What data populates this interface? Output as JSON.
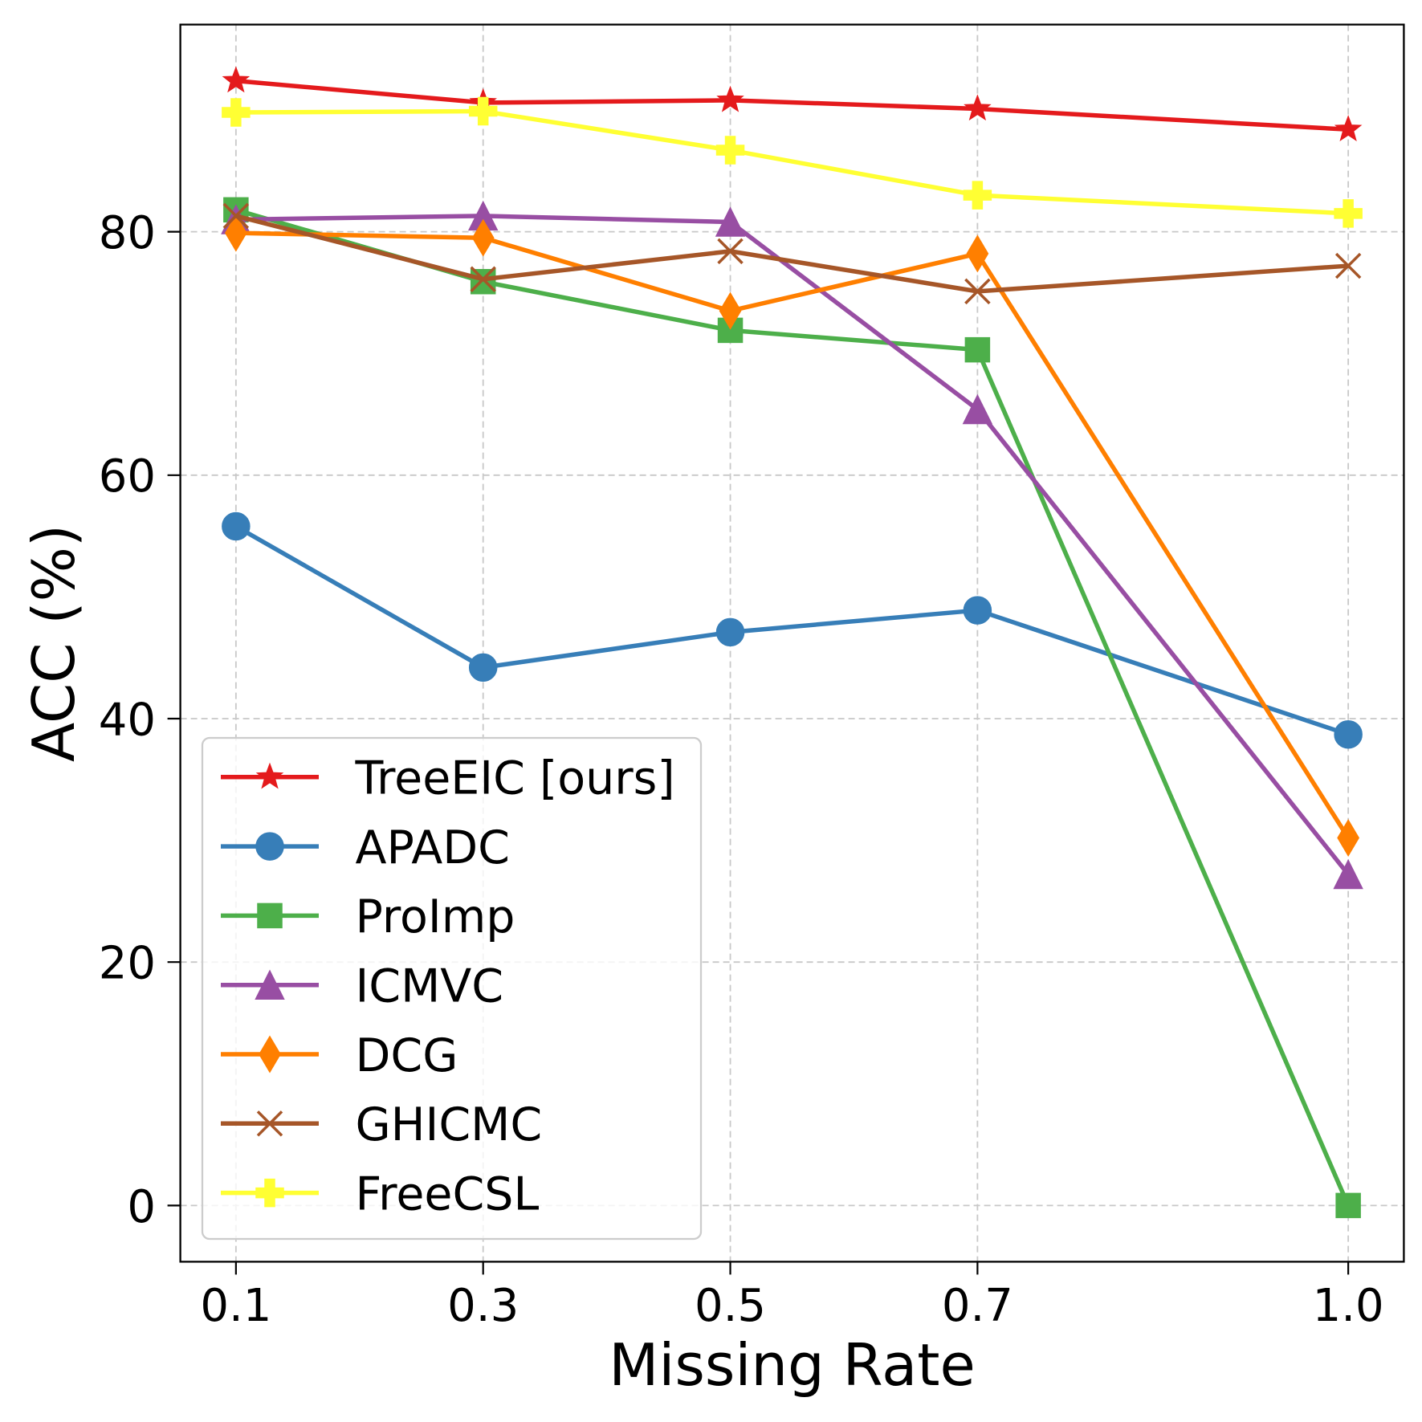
{
  "chart_data": {
    "type": "line",
    "xlabel": "Missing Rate",
    "ylabel": "ACC (%)",
    "x": [
      0.1,
      0.3,
      0.5,
      0.7,
      1.0
    ],
    "xtick_values": [
      0.1,
      0.3,
      0.5,
      0.7,
      1.0
    ],
    "xtick_labels": [
      "0.1",
      "0.3",
      "0.5",
      "0.7",
      "1.0"
    ],
    "ytick_values": [
      0,
      20,
      40,
      60,
      80
    ],
    "ytick_labels": [
      "0",
      "20",
      "40",
      "60",
      "80"
    ],
    "xlim": [
      0.055,
      1.045
    ],
    "ylim": [
      -4.62,
      97.02
    ],
    "grid": true,
    "legend_position": "lower-left",
    "series": [
      {
        "name": "TreeEIC [ours]",
        "color": "#e41a1c",
        "marker": "star",
        "values": [
          92.4,
          90.6,
          90.8,
          90.1,
          88.4
        ]
      },
      {
        "name": "APADC",
        "color": "#377eb8",
        "marker": "circle",
        "values": [
          55.8,
          44.2,
          47.1,
          48.9,
          38.7
        ]
      },
      {
        "name": "ProImp",
        "color": "#4daf4a",
        "marker": "square",
        "values": [
          81.8,
          75.9,
          71.9,
          70.3,
          0.0
        ]
      },
      {
        "name": "ICMVC",
        "color": "#984ea3",
        "marker": "triangle-up",
        "values": [
          81.0,
          81.3,
          80.8,
          65.4,
          27.2
        ]
      },
      {
        "name": "DCG",
        "color": "#ff7f00",
        "marker": "thin-diamond",
        "values": [
          79.9,
          79.5,
          73.5,
          78.2,
          30.2
        ]
      },
      {
        "name": "GHICMC",
        "color": "#a65628",
        "marker": "x",
        "values": [
          81.3,
          76.1,
          78.4,
          75.1,
          77.2
        ]
      },
      {
        "name": "FreeCSL",
        "color": "#ffff33",
        "marker": "plus-filled",
        "values": [
          89.8,
          89.9,
          86.7,
          83.0,
          81.5
        ]
      }
    ]
  }
}
